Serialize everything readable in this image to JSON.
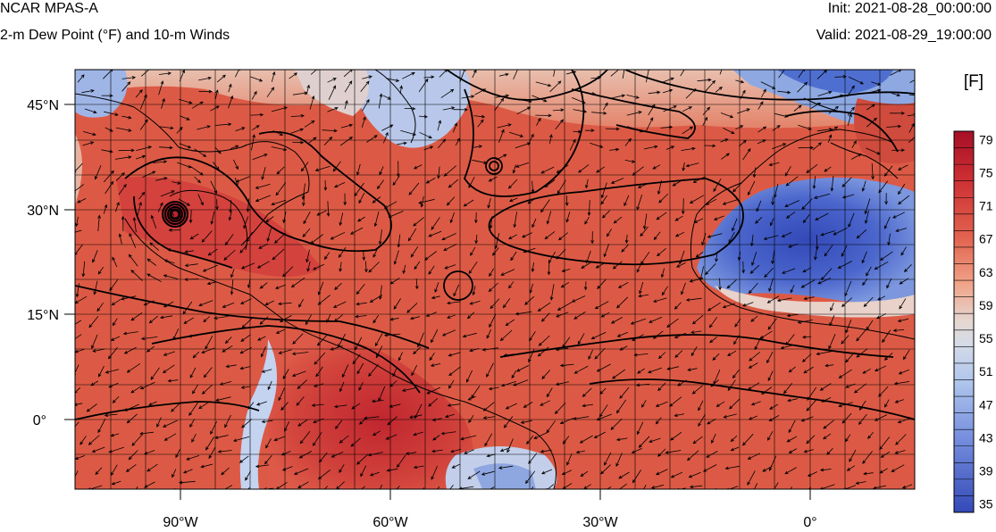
{
  "header": {
    "model": "NCAR MPAS-A",
    "field": "2-m Dew Point (°F) and 10-m Winds",
    "init": "Init: 2021-08-28_00:00:00",
    "valid": "Valid: 2021-08-29_19:00:00"
  },
  "map": {
    "lat_labels": [
      "45°N",
      "30°N",
      "15°N",
      "0°"
    ],
    "lon_labels": [
      "90°W",
      "60°W",
      "30°W",
      "0°"
    ],
    "lat_values": [
      45,
      30,
      15,
      0
    ],
    "lon_values": [
      -90,
      -60,
      -30,
      0
    ],
    "lon_range": [
      -105,
      15
    ],
    "lat_range": [
      -10,
      50
    ]
  },
  "colorbar": {
    "units": "[F]",
    "tick_labels": [
      "79",
      "75",
      "71",
      "67",
      "63",
      "59",
      "55",
      "51",
      "47",
      "43",
      "39",
      "35"
    ],
    "range": [
      35,
      81
    ],
    "colors": {
      "low": "#3a4fc0",
      "mid": "#dcdcdc",
      "high": "#b2182b"
    }
  }
}
